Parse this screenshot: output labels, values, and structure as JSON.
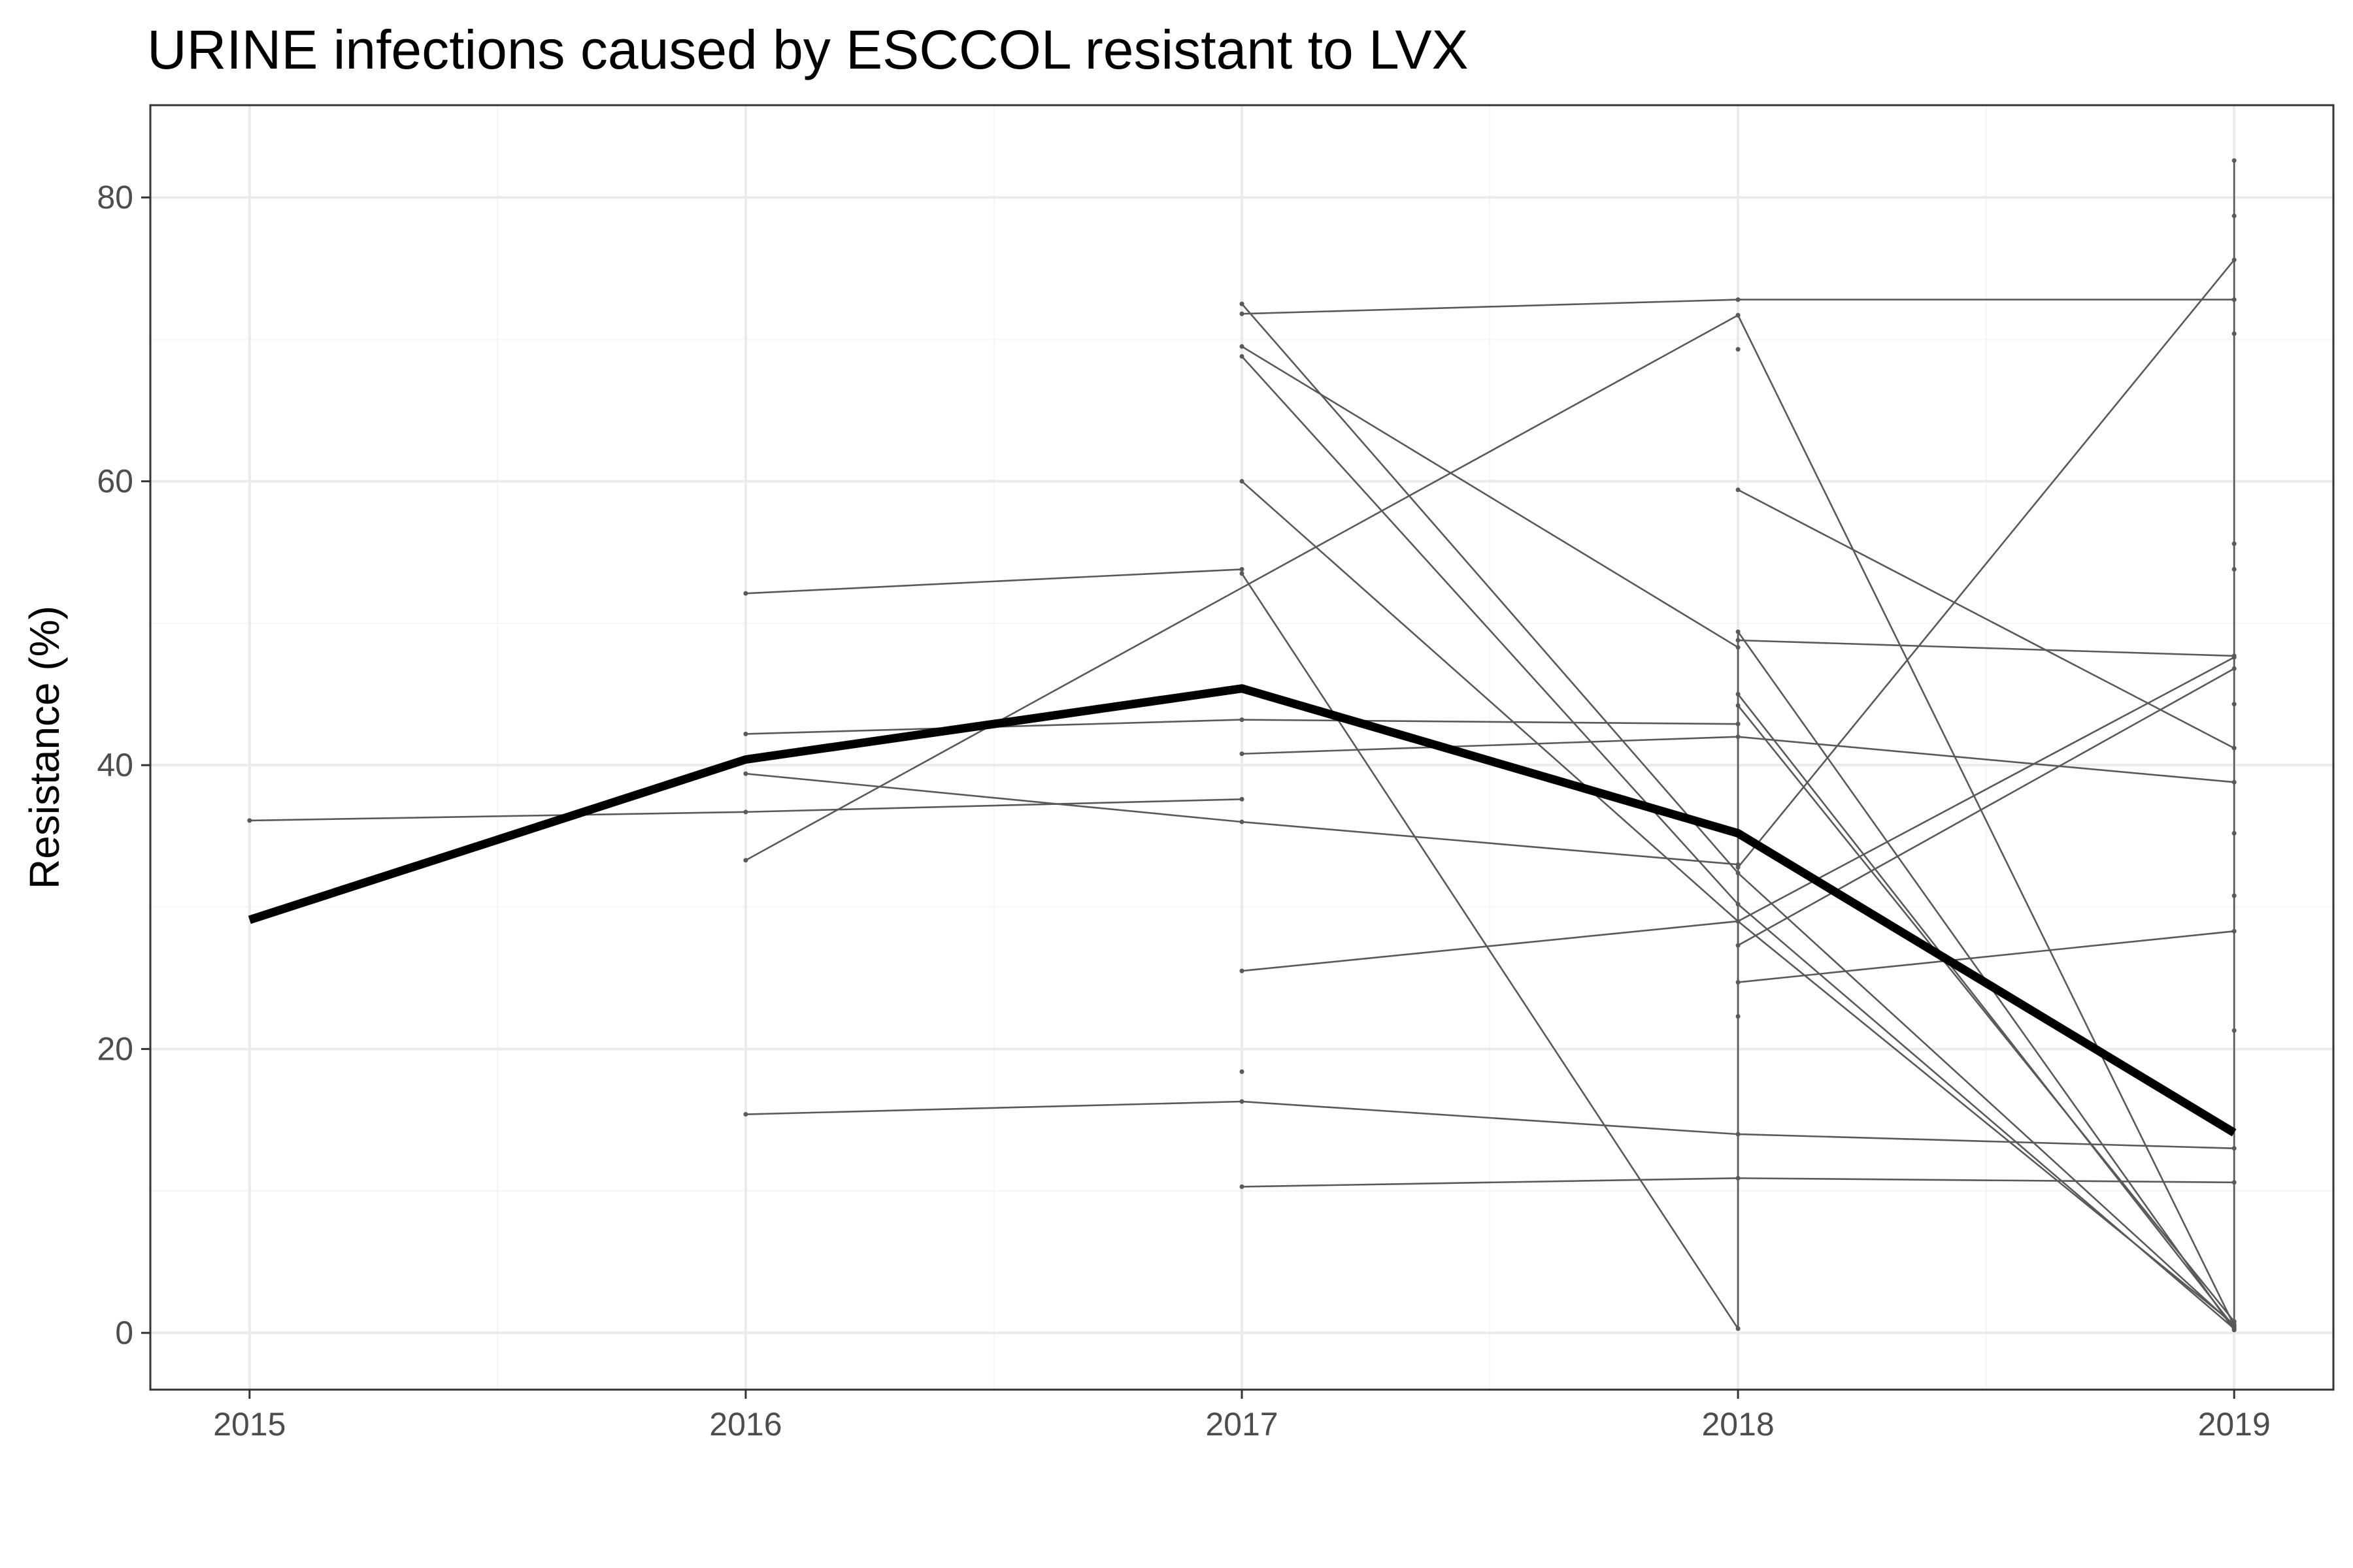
{
  "chart_data": {
    "type": "line",
    "title": "URINE infections caused by ESCCOL resistant to LVX",
    "xlabel": "",
    "ylabel": "Resistance (%)",
    "x": [
      2015,
      2016,
      2017,
      2018,
      2019
    ],
    "x_tick_labels": [
      "2015",
      "2016",
      "2017",
      "2018",
      "2019"
    ],
    "y_ticks": [
      0,
      20,
      40,
      60,
      80
    ],
    "y_tick_labels": [
      "0",
      "20",
      "40",
      "60",
      "80"
    ],
    "xlim": [
      2014.8,
      2019.2
    ],
    "ylim": [
      -4,
      86.5
    ],
    "grid": true,
    "legend": "none",
    "colors": {
      "series": "#595959",
      "overall": "#000000",
      "panel_border": "#333333",
      "grid_major": "#ebebeb",
      "grid_minor": "#f5f5f5"
    },
    "series": [
      {
        "x": [
          2015,
          2016,
          2017
        ],
        "values": [
          36.1,
          36.7,
          37.6
        ]
      },
      {
        "x": [
          2016,
          2017
        ],
        "values": [
          52.1,
          53.8
        ]
      },
      {
        "x": [
          2016,
          2017,
          2018
        ],
        "values": [
          42.2,
          43.2,
          42.9
        ]
      },
      {
        "x": [
          2016,
          2017,
          2018
        ],
        "values": [
          39.4,
          36.0,
          33.0
        ]
      },
      {
        "x": [
          2016,
          2018
        ],
        "values": [
          33.3,
          71.7
        ]
      },
      {
        "x": [
          2016,
          2017,
          2018,
          2019
        ],
        "values": [
          15.4,
          16.3,
          14.0,
          13.0
        ]
      },
      {
        "x": [
          2017,
          2018,
          2019
        ],
        "values": [
          71.8,
          72.8,
          72.8
        ]
      },
      {
        "x": [
          2017,
          2018,
          2019
        ],
        "values": [
          72.5,
          32.4,
          0.5
        ]
      },
      {
        "x": [
          2017,
          2018
        ],
        "values": [
          69.5,
          48.3
        ]
      },
      {
        "x": [
          2017,
          2018,
          2019
        ],
        "values": [
          68.8,
          30.2,
          0.3
        ]
      },
      {
        "x": [
          2017,
          2018,
          2019
        ],
        "values": [
          60.0,
          29.0,
          0.6
        ]
      },
      {
        "x": [
          2017,
          2018
        ],
        "values": [
          53.5,
          0.3
        ]
      },
      {
        "x": [
          2017,
          2018,
          2019
        ],
        "values": [
          40.8,
          42.0,
          38.8
        ]
      },
      {
        "x": [
          2017,
          2018,
          2019
        ],
        "values": [
          25.5,
          29.0,
          47.6
        ]
      },
      {
        "x": [
          2017,
          2018,
          2019
        ],
        "values": [
          10.3,
          10.9,
          10.6
        ]
      },
      {
        "x": [
          2018,
          2019
        ],
        "values": [
          71.7,
          0.5
        ]
      },
      {
        "x": [
          2018,
          2019
        ],
        "values": [
          59.4,
          41.2
        ]
      },
      {
        "x": [
          2018,
          2019
        ],
        "values": [
          48.8,
          47.7
        ]
      },
      {
        "x": [
          2018,
          2019
        ],
        "values": [
          49.4,
          0.2
        ]
      },
      {
        "x": [
          2018,
          2019
        ],
        "values": [
          45.0,
          0.4
        ]
      },
      {
        "x": [
          2018,
          2019
        ],
        "values": [
          44.2,
          0.8
        ]
      },
      {
        "x": [
          2018,
          2019
        ],
        "values": [
          27.3,
          46.8
        ]
      },
      {
        "x": [
          2018,
          2019
        ],
        "values": [
          24.7,
          28.3
        ]
      },
      {
        "x": [
          2018,
          2019
        ],
        "values": [
          32.8,
          75.6
        ]
      }
    ],
    "overall": {
      "x": [
        2015,
        2016,
        2017,
        2018,
        2019
      ],
      "values": [
        29.1,
        40.4,
        45.4,
        35.2,
        14.1
      ]
    },
    "points": [
      {
        "x": 2017,
        "y": 18.4
      },
      {
        "x": 2018,
        "y": 69.3
      },
      {
        "x": 2018,
        "y": 22.3
      },
      {
        "x": 2019,
        "y": 82.6
      },
      {
        "x": 2019,
        "y": 78.7
      },
      {
        "x": 2019,
        "y": 70.4
      },
      {
        "x": 2019,
        "y": 55.6
      },
      {
        "x": 2019,
        "y": 53.8
      },
      {
        "x": 2019,
        "y": 44.3
      },
      {
        "x": 2019,
        "y": 35.2
      },
      {
        "x": 2019,
        "y": 30.8
      },
      {
        "x": 2019,
        "y": 21.3
      }
    ],
    "vertical_ranges": [
      {
        "x": 2018,
        "min": 0.3,
        "max": 49.4
      },
      {
        "x": 2019,
        "min": 0.2,
        "max": 82.6
      }
    ]
  }
}
